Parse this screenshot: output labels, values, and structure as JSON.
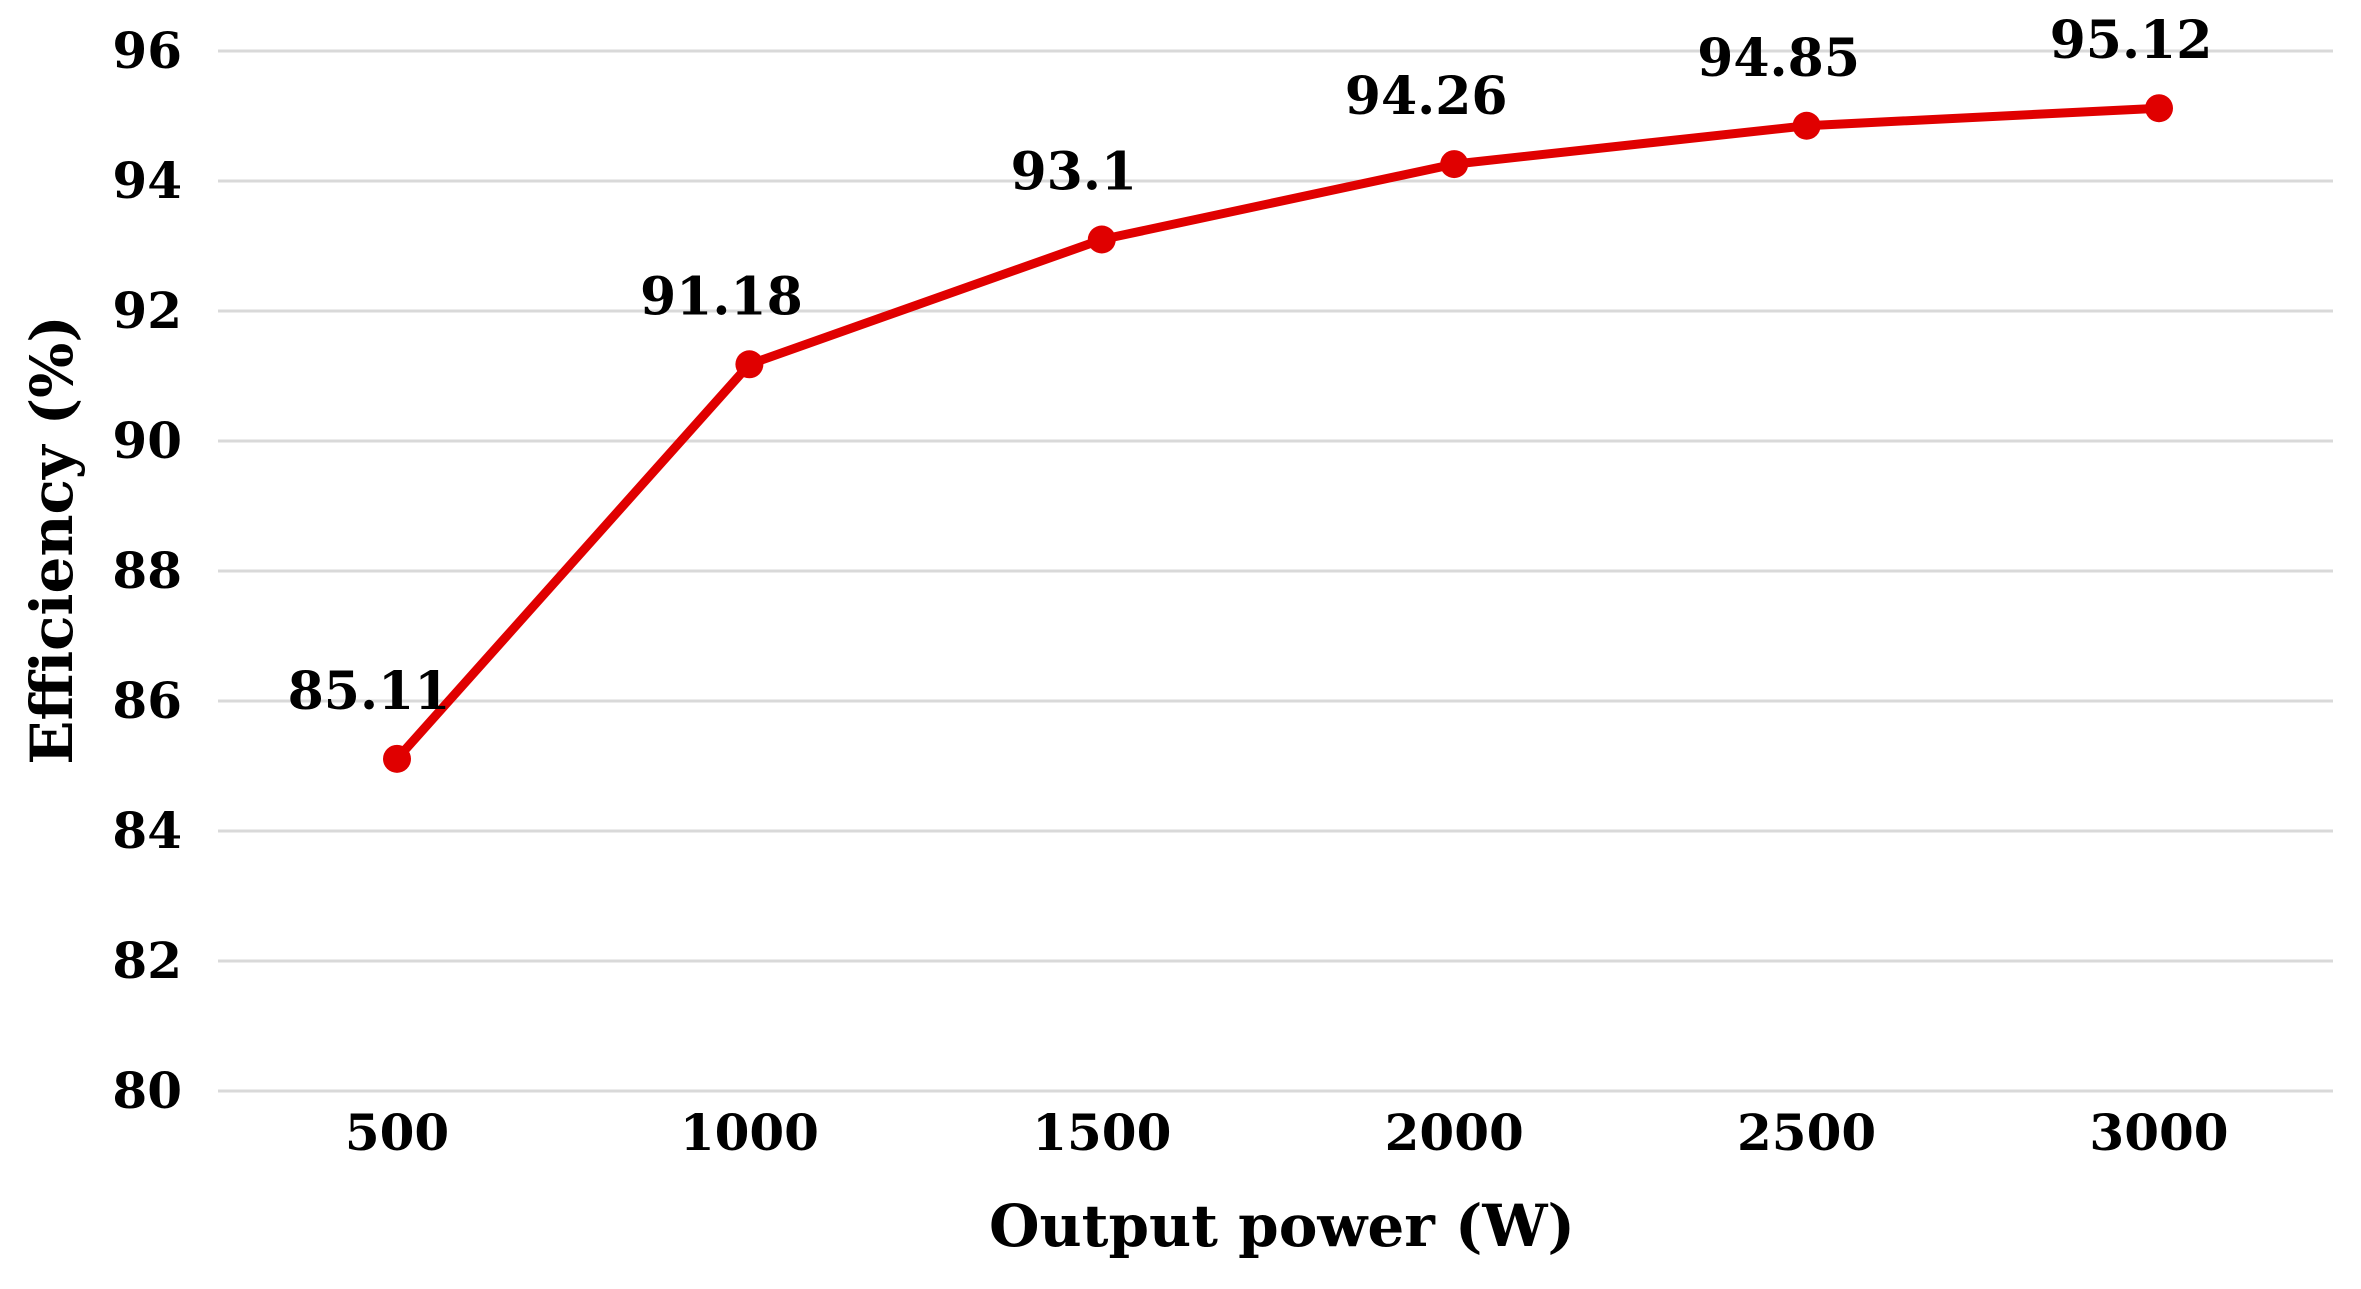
{
  "chart_data": {
    "type": "line",
    "title": "",
    "xlabel": "Output power (W)",
    "ylabel": "Efficiency (%)",
    "categories": [
      "500",
      "1000",
      "1500",
      "2000",
      "2500",
      "3000"
    ],
    "x": [
      500,
      1000,
      1500,
      2000,
      2500,
      3000
    ],
    "series": [
      {
        "values": [
          85.11,
          91.18,
          93.1,
          94.26,
          94.85,
          95.12
        ],
        "data_labels": [
          "85.11",
          "91.18",
          "93.1",
          "94.26",
          "94.85",
          "95.12"
        ]
      }
    ],
    "ylim": [
      80,
      96
    ],
    "yticks": [
      80,
      82,
      84,
      86,
      88,
      90,
      92,
      94,
      96
    ],
    "ytick_labels": [
      "80",
      "82",
      "84",
      "86",
      "88",
      "90",
      "92",
      "94",
      "96"
    ],
    "grid": true,
    "legend": "none",
    "line_color": "#e00000",
    "grid_color": "#d9d9d9"
  }
}
